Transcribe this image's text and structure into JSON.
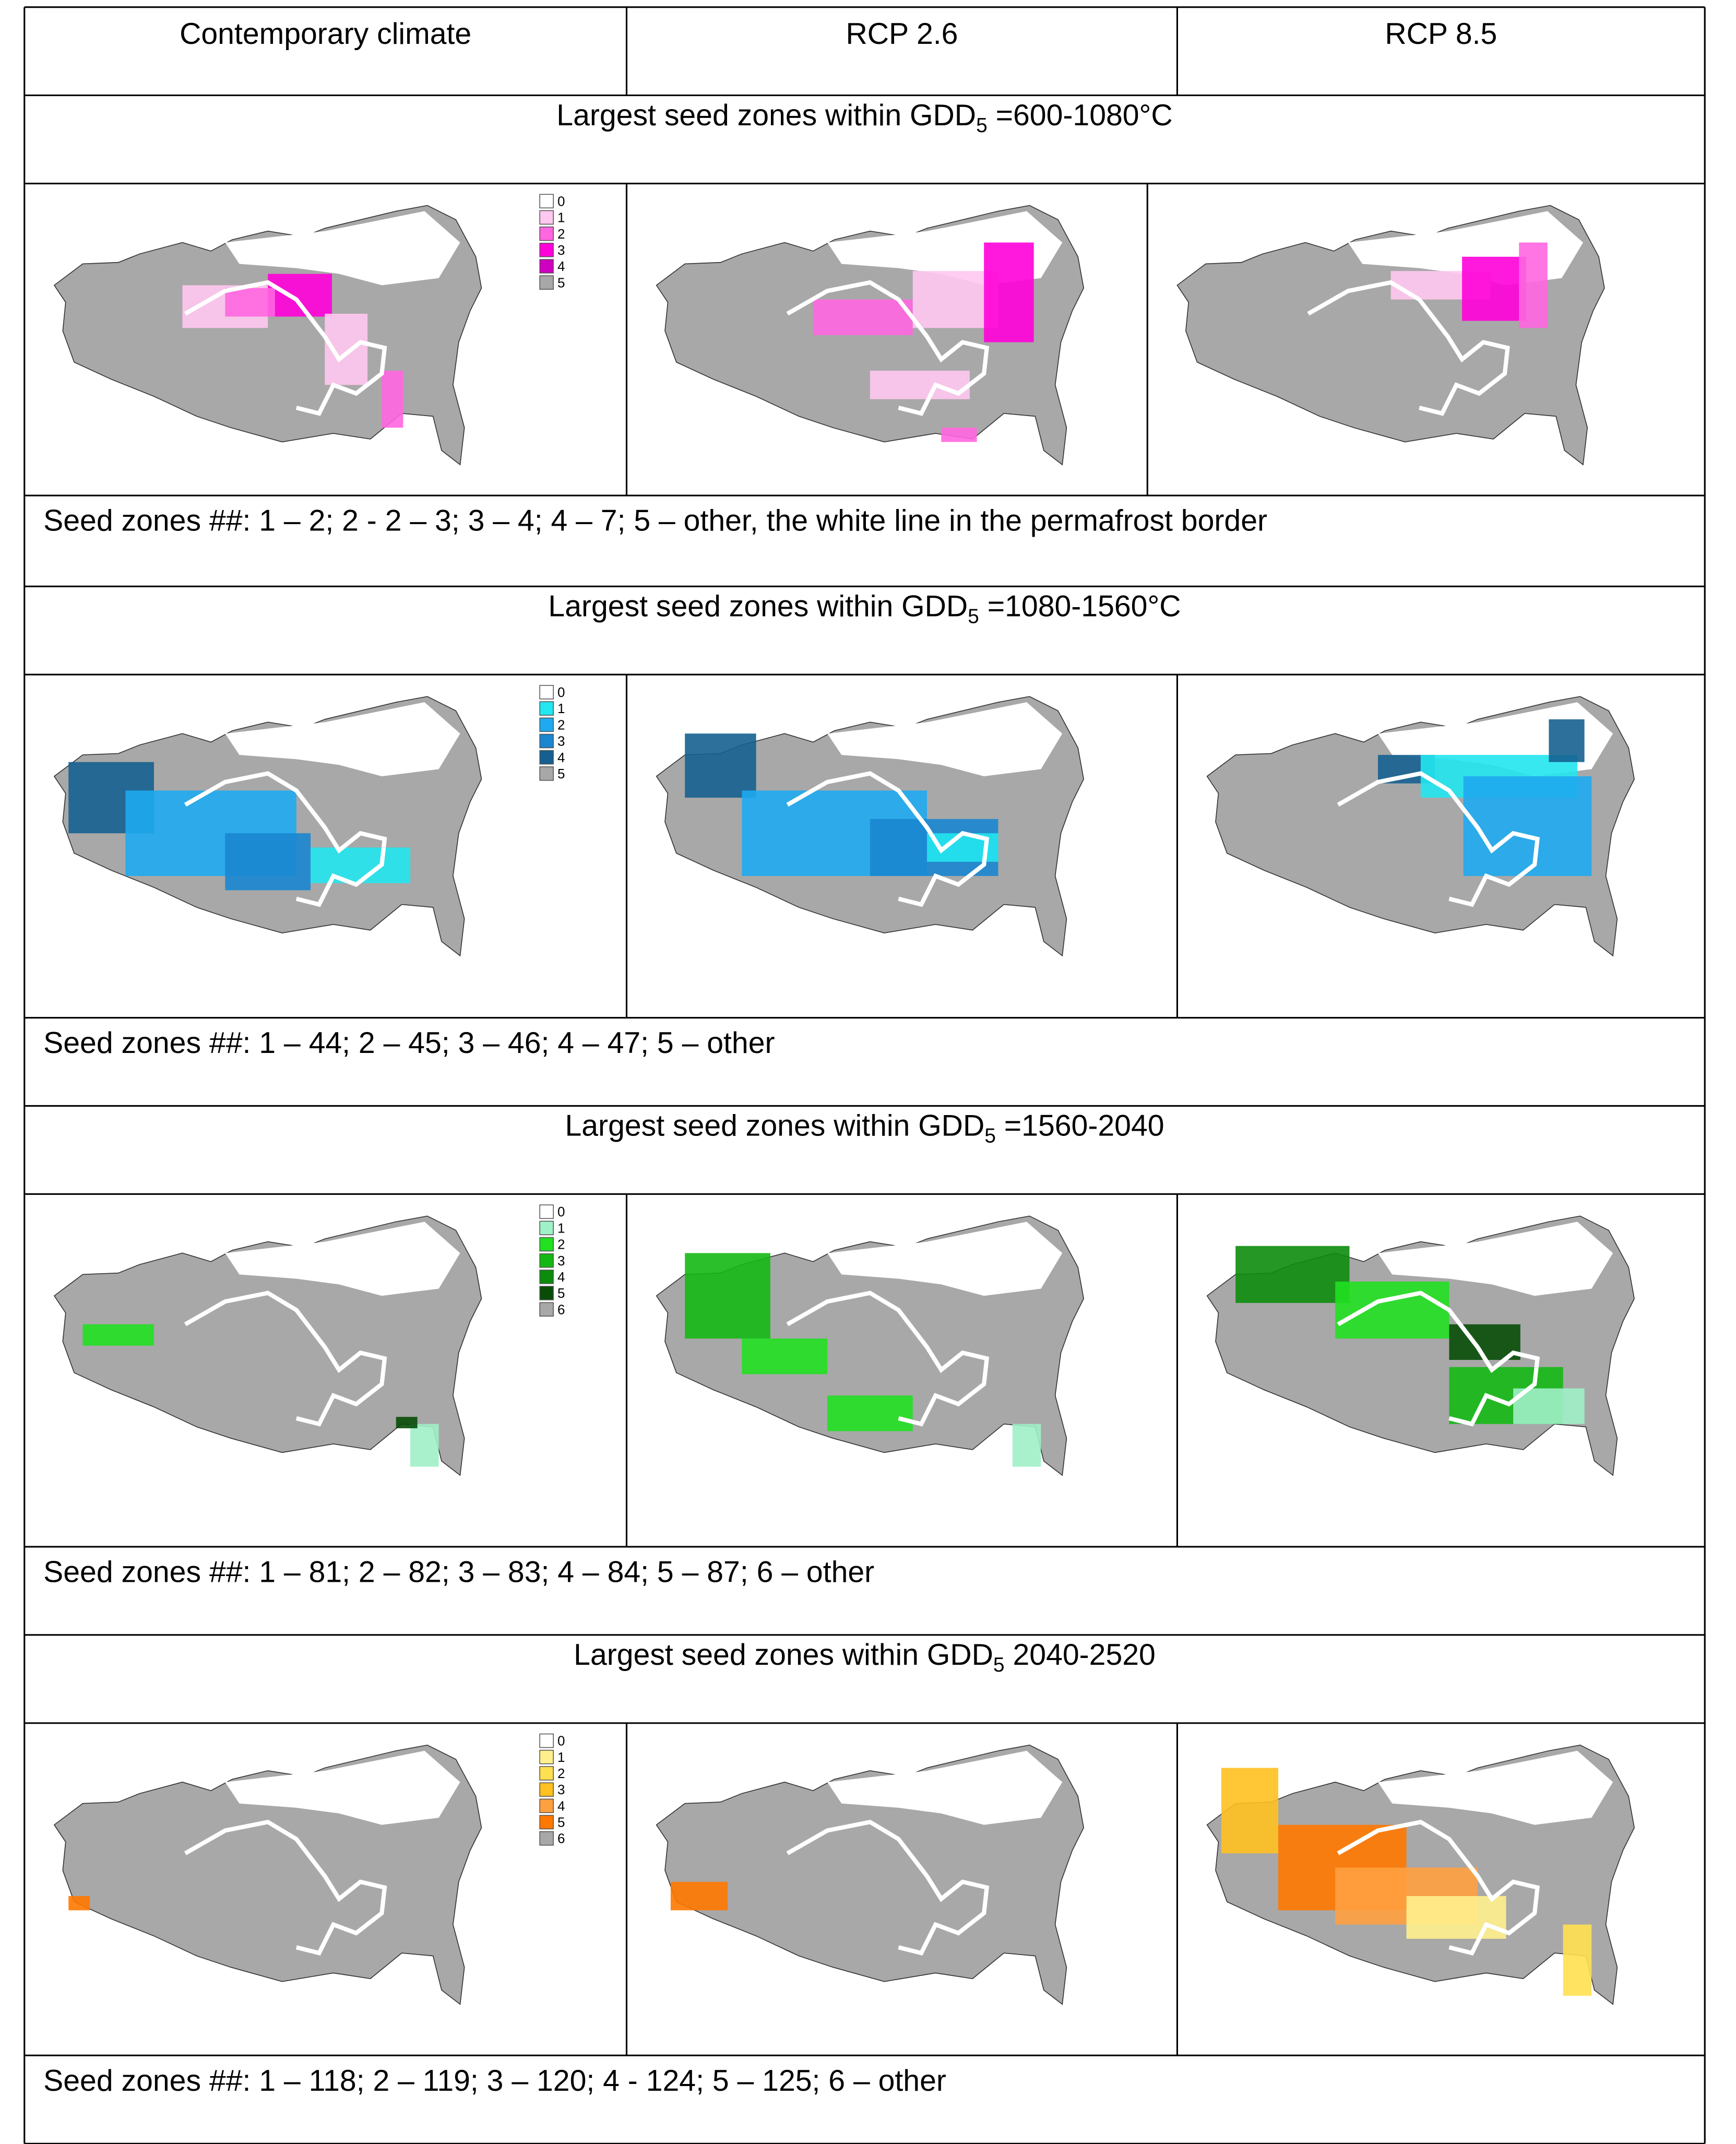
{
  "header": [
    "Contemporary climate",
    "RCP 2.6",
    "RCP 8.5"
  ],
  "sections": [
    {
      "title": {
        "prefix": "Largest seed zones within GDD",
        "sub": "5",
        "suffix": " =600-1080°C"
      },
      "legend": [
        {
          "label": "0",
          "color": "#ffffff"
        },
        {
          "label": "1",
          "color": "#ffc8f0"
        },
        {
          "label": "2",
          "color": "#ff66e0"
        },
        {
          "label": "3",
          "color": "#ff00d8"
        },
        {
          "label": "4",
          "color": "#d000c0"
        },
        {
          "label": "5",
          "color": "#a8a8a8"
        }
      ],
      "caption": "Seed zones ##: 1 – 2; 2 - 2 – 3; 3 – 4; 4 – 7; 5 –  other, the white line in the permafrost border"
    },
    {
      "title": {
        "prefix": "Largest seed zones within GDD",
        "sub": "5",
        "suffix": " =1080-1560°C"
      },
      "legend": [
        {
          "label": "0",
          "color": "#ffffff"
        },
        {
          "label": "1",
          "color": "#22e6f0"
        },
        {
          "label": "2",
          "color": "#1eaaf0"
        },
        {
          "label": "3",
          "color": "#1a86d0"
        },
        {
          "label": "4",
          "color": "#156090"
        },
        {
          "label": "5",
          "color": "#a8a8a8"
        }
      ],
      "caption": "Seed zones ##: 1 – 44; 2 – 45; 3 – 46; 4 – 47; 5 – other"
    },
    {
      "title": {
        "prefix": "Largest seed zones within GDD",
        "sub": "5",
        "suffix": " =1560-2040"
      },
      "legend": [
        {
          "label": "0",
          "color": "#ffffff"
        },
        {
          "label": "1",
          "color": "#a0f0c8"
        },
        {
          "label": "2",
          "color": "#20e020"
        },
        {
          "label": "3",
          "color": "#14b814"
        },
        {
          "label": "4",
          "color": "#0c8c0c"
        },
        {
          "label": "5",
          "color": "#084c08"
        },
        {
          "label": "6",
          "color": "#a8a8a8"
        }
      ],
      "caption": "Seed zones ##: 1 – 81; 2 – 82; 3 – 83; 4 – 84; 5 – 87; 6 –  other"
    },
    {
      "title": {
        "prefix": "Largest seed zones within GDD",
        "sub": "5",
        "suffix": " 2040-2520"
      },
      "legend": [
        {
          "label": "0",
          "color": "#ffffff"
        },
        {
          "label": "1",
          "color": "#fff08c"
        },
        {
          "label": "2",
          "color": "#ffe050"
        },
        {
          "label": "3",
          "color": "#ffc020"
        },
        {
          "label": "4",
          "color": "#ffa040"
        },
        {
          "label": "5",
          "color": "#ff7800"
        },
        {
          "label": "6",
          "color": "#a8a8a8"
        }
      ],
      "caption": "Seed zones ##: 1 – 118; 2 – 119; 3 – 120; 4 - 124; 5 – 125; 6 – other"
    }
  ]
}
